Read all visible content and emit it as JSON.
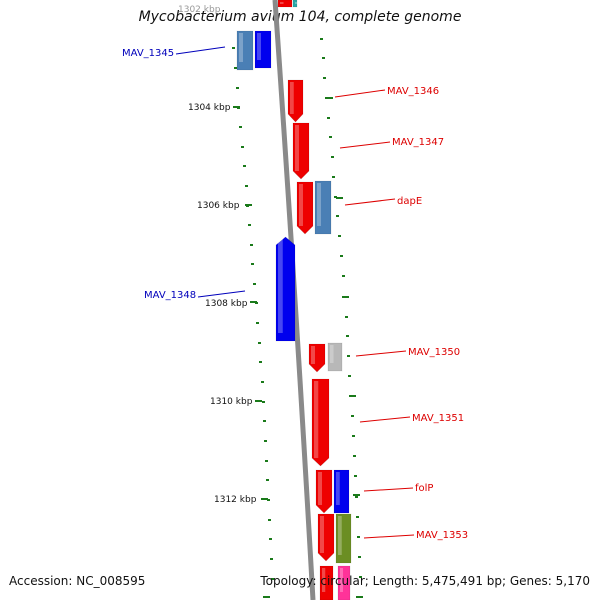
{
  "title": "Mycobacterium avium 104, complete genome",
  "footer": {
    "accession": "Accession: NC_008595",
    "summary": "Topology: circular; Length: 5,475,491 bp; Genes: 5,170"
  },
  "colors": {
    "backbone": "#8a8a8a",
    "tick": "#1a7a1a",
    "label_blue": "#0000bb",
    "label_red": "#dd0000",
    "red": "#ee0000",
    "blue": "#0000ee",
    "steelblue": "#4a7fb5",
    "gray": "#b8b8b8",
    "olive": "#6b8e23",
    "teal": "#2aa7a7",
    "magenta": "#ff3399"
  },
  "scale_labels": [
    {
      "text": "1302 kbp"
    },
    {
      "text": "1304 kbp"
    },
    {
      "text": "1306 kbp"
    },
    {
      "text": "1308 kbp"
    },
    {
      "text": "1310 kbp"
    },
    {
      "text": "1312 kbp"
    }
  ],
  "gene_labels": [
    {
      "text": "MAV_1345",
      "color": "blue"
    },
    {
      "text": "MAV_1346",
      "color": "red"
    },
    {
      "text": "MAV_1347",
      "color": "red"
    },
    {
      "text": "dapE",
      "color": "red"
    },
    {
      "text": "MAV_1348",
      "color": "blue"
    },
    {
      "text": "MAV_1350",
      "color": "red"
    },
    {
      "text": "MAV_1351",
      "color": "red"
    },
    {
      "text": "folP",
      "color": "red"
    },
    {
      "text": "MAV_1353",
      "color": "red"
    }
  ]
}
